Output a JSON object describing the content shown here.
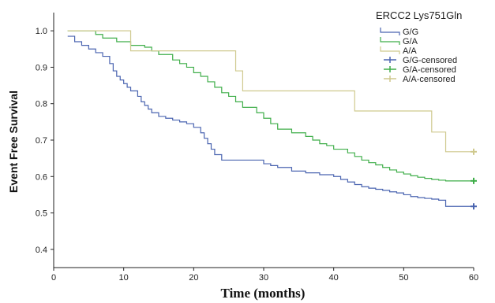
{
  "chart_data": {
    "type": "line",
    "subtype": "kaplan-meier-step",
    "xlabel": "Time (months)",
    "ylabel": "Event Free Survival",
    "xlim": [
      0,
      60
    ],
    "ylim": [
      0.35,
      1.05
    ],
    "xticks": [
      0,
      10,
      20,
      30,
      40,
      50,
      60
    ],
    "yticks": [
      0.4,
      0.5,
      0.6,
      0.7,
      0.8,
      0.9,
      1.0
    ],
    "yticklabels": [
      "0.4",
      "0.5",
      "0.6",
      "0.7",
      "0.8",
      "0.9",
      "1.0"
    ],
    "grid": false,
    "legend_title": "ERCC2 Lys751Gln",
    "legend_position": "top-right",
    "legend": [
      {
        "label": "G/G",
        "color": "#4a64b0",
        "marker": "line"
      },
      {
        "label": "G/A",
        "color": "#3fae49",
        "marker": "line"
      },
      {
        "label": "A/A",
        "color": "#cfc98e",
        "marker": "line"
      },
      {
        "label": "G/G-censored",
        "color": "#4a64b0",
        "marker": "plus"
      },
      {
        "label": "G/A-censored",
        "color": "#3fae49",
        "marker": "plus"
      },
      {
        "label": "A/A-censored",
        "color": "#cfc98e",
        "marker": "plus"
      }
    ],
    "series": [
      {
        "name": "G/G",
        "color": "#4a64b0",
        "x": [
          0,
          3,
          4,
          5,
          6,
          7,
          8,
          8.5,
          9,
          9.5,
          10,
          10.5,
          11,
          12,
          12.5,
          13,
          13.5,
          14,
          15,
          16,
          17,
          18,
          19,
          20,
          21,
          21.5,
          22,
          22.5,
          23,
          24,
          30,
          31,
          32,
          34,
          36,
          38,
          40,
          41,
          42,
          43,
          44,
          45,
          46,
          47,
          48,
          49,
          50,
          51,
          52,
          53,
          54,
          55,
          56,
          60
        ],
        "y": [
          0.985,
          0.97,
          0.96,
          0.95,
          0.94,
          0.93,
          0.91,
          0.89,
          0.875,
          0.865,
          0.855,
          0.845,
          0.835,
          0.82,
          0.805,
          0.795,
          0.785,
          0.775,
          0.765,
          0.76,
          0.755,
          0.75,
          0.745,
          0.735,
          0.72,
          0.705,
          0.69,
          0.675,
          0.66,
          0.645,
          0.635,
          0.63,
          0.625,
          0.615,
          0.61,
          0.605,
          0.6,
          0.592,
          0.585,
          0.578,
          0.572,
          0.568,
          0.565,
          0.562,
          0.558,
          0.555,
          0.55,
          0.545,
          0.542,
          0.54,
          0.538,
          0.535,
          0.518,
          0.518
        ]
      },
      {
        "name": "G/A",
        "color": "#3fae49",
        "x": [
          0,
          6,
          7,
          9,
          11,
          13,
          14,
          15,
          17,
          18,
          19,
          20,
          21,
          22,
          23,
          24,
          25,
          26,
          27,
          29,
          30,
          31,
          32,
          34,
          36,
          37,
          38,
          39,
          40,
          42,
          43,
          44,
          45,
          46,
          47,
          48,
          49,
          50,
          51,
          52,
          53,
          54,
          55,
          56,
          60
        ],
        "y": [
          1.0,
          0.99,
          0.98,
          0.97,
          0.96,
          0.955,
          0.945,
          0.935,
          0.92,
          0.91,
          0.9,
          0.885,
          0.875,
          0.86,
          0.845,
          0.83,
          0.82,
          0.805,
          0.79,
          0.775,
          0.76,
          0.745,
          0.73,
          0.72,
          0.71,
          0.7,
          0.69,
          0.685,
          0.675,
          0.665,
          0.655,
          0.645,
          0.638,
          0.632,
          0.625,
          0.618,
          0.612,
          0.607,
          0.602,
          0.598,
          0.595,
          0.592,
          0.59,
          0.588,
          0.588
        ]
      },
      {
        "name": "A/A",
        "color": "#cfc98e",
        "x": [
          0,
          11,
          26,
          27,
          43,
          54,
          56,
          60
        ],
        "y": [
          1.0,
          0.945,
          0.89,
          0.835,
          0.78,
          0.722,
          0.668,
          0.668
        ]
      }
    ],
    "censored": [
      {
        "name": "G/G-censored",
        "color": "#4a64b0",
        "x": [
          60
        ],
        "y": [
          0.518
        ]
      },
      {
        "name": "G/A-censored",
        "color": "#3fae49",
        "x": [
          60
        ],
        "y": [
          0.588
        ]
      },
      {
        "name": "A/A-censored",
        "color": "#cfc98e",
        "x": [
          60
        ],
        "y": [
          0.668
        ]
      }
    ]
  }
}
